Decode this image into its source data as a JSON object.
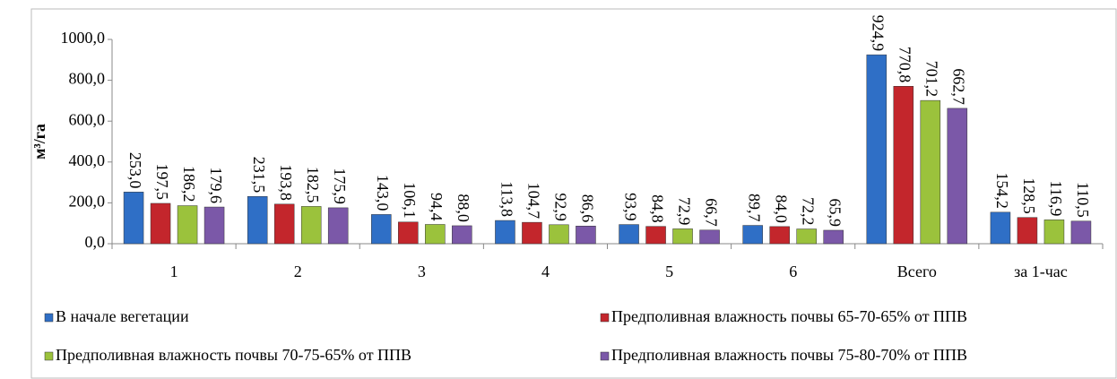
{
  "chart_data": {
    "type": "bar",
    "y_label": "м³/га",
    "categories": [
      "1",
      "2",
      "3",
      "4",
      "5",
      "6",
      "Всего",
      "за 1-час"
    ],
    "series": [
      {
        "name": "В начале вегетации",
        "color": "#2f6fc6",
        "values": [
          253.0,
          231.5,
          143.0,
          113.8,
          93.9,
          89.7,
          924.9,
          154.2
        ],
        "value_labels": [
          "253,0",
          "231,5",
          "143,0",
          "113,8",
          "93,9",
          "89,7",
          "924,9",
          "154,2"
        ]
      },
      {
        "name": "Предполивная влажность почвы 65-70-65% от ППВ",
        "color": "#c3262c",
        "values": [
          197.5,
          193.8,
          106.1,
          104.7,
          84.8,
          84.0,
          770.8,
          128.5
        ],
        "value_labels": [
          "197,5",
          "193,8",
          "106,1",
          "104,7",
          "84,8",
          "84,0",
          "770,8",
          "128,5"
        ]
      },
      {
        "name": "Предполивная влажность почвы 70-75-65% от ППВ",
        "color": "#9bc23c",
        "values": [
          186.2,
          182.5,
          94.4,
          92.9,
          72.9,
          72.2,
          701.2,
          116.9
        ],
        "value_labels": [
          "186,2",
          "182,5",
          "94,4",
          "92,9",
          "72,9",
          "72,2",
          "701,2",
          "116,9"
        ]
      },
      {
        "name": "Предполивная влажность почвы 75-80-70% от ППВ",
        "color": "#7b58a8",
        "values": [
          179.6,
          175.9,
          88.0,
          86.6,
          66.7,
          65.9,
          662.7,
          110.5
        ],
        "value_labels": [
          "179,6",
          "175,9",
          "88,0",
          "86,6",
          "66,7",
          "65,9",
          "662,7",
          "110,5"
        ]
      }
    ],
    "ylim": [
      0,
      1000
    ],
    "yticks": [
      {
        "value": 0,
        "label": "0,0"
      },
      {
        "value": 200,
        "label": "200,0"
      },
      {
        "value": 400,
        "label": "400,0"
      },
      {
        "value": 600,
        "label": "600,0"
      },
      {
        "value": 800,
        "label": "800,0"
      },
      {
        "value": 1000,
        "label": "1000,0"
      }
    ],
    "grid": false,
    "legend": "bottom"
  }
}
